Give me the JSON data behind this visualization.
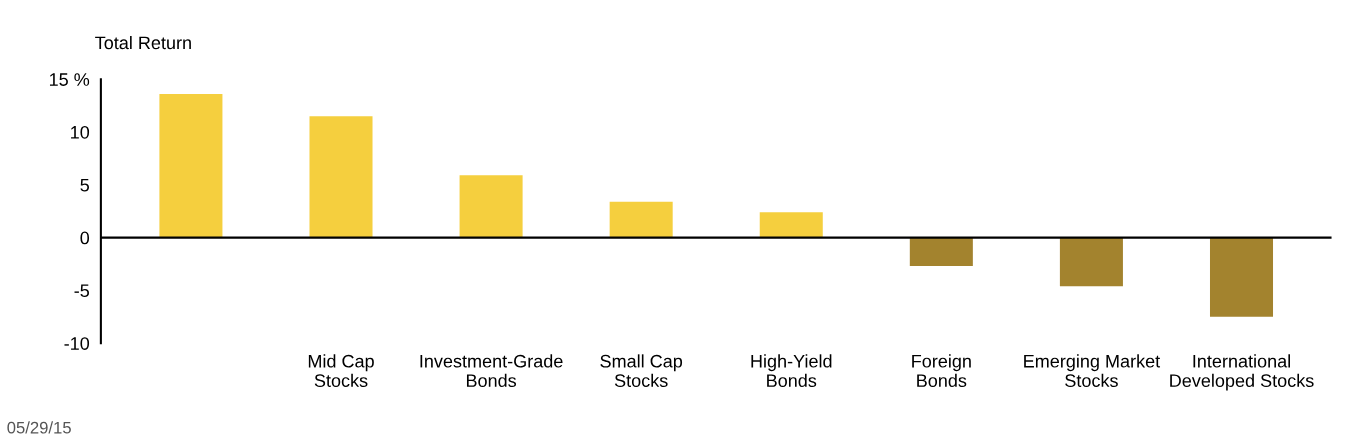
{
  "chart_data": {
    "type": "bar",
    "ylabel": "Total Return",
    "categories": [
      null,
      "Mid Cap\nStocks",
      "Investment-Grade\nBonds",
      "Small Cap\nStocks",
      "High-Yield\nBonds",
      "Foreign\nBonds",
      "Emerging Market\nStocks",
      "International\nDeveloped Stocks"
    ],
    "values": [
      13.6,
      11.5,
      5.9,
      3.4,
      2.4,
      -2.7,
      -4.6,
      -7.5
    ],
    "colors": [
      "#f5cf3e",
      "#f5cf3e",
      "#f5cf3e",
      "#f5cf3e",
      "#f5cf3e",
      "#a3832e",
      "#a3832e",
      "#a3832e"
    ],
    "ylim": [
      -10,
      15
    ],
    "yticks": [
      -10,
      -5,
      0,
      5,
      10,
      {
        "value": 15,
        "label": "15 %"
      }
    ],
    "ref_lines": [
      {
        "axis": "y",
        "value": 0,
        "color": "#000000"
      }
    ],
    "grid": false,
    "legend": false,
    "annotations": [
      "05/29/15"
    ]
  }
}
